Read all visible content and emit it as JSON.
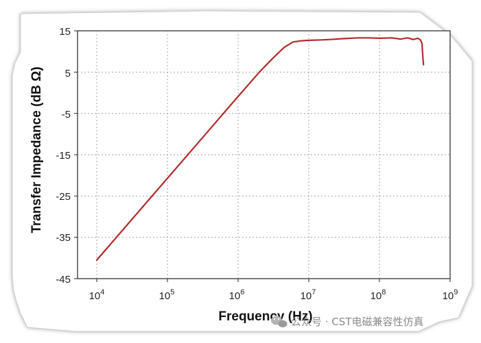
{
  "chart_data": {
    "type": "line",
    "title": "",
    "xlabel": "Frequency (Hz)",
    "ylabel": "Transfer Impedance (dB Ω)",
    "x_scale": "log",
    "xlim": [
      10000,
      1000000000
    ],
    "ylim": [
      -45,
      15
    ],
    "x_tick_labels": [
      {
        "base": "10",
        "exp": "4"
      },
      {
        "base": "10",
        "exp": "5"
      },
      {
        "base": "10",
        "exp": "6"
      },
      {
        "base": "10",
        "exp": "7"
      },
      {
        "base": "10",
        "exp": "8"
      },
      {
        "base": "10",
        "exp": "9"
      }
    ],
    "x_ticks": [
      10000,
      100000,
      1000000,
      10000000,
      100000000,
      1000000000
    ],
    "y_tick_labels": [
      "15",
      "5",
      "-5",
      "-15",
      "-25",
      "-35",
      "-45"
    ],
    "y_ticks": [
      15,
      5,
      -5,
      -15,
      -25,
      -35,
      -45
    ],
    "grid": true,
    "series_color": "#b22a2a",
    "series": [
      {
        "name": "",
        "x": [
          10000,
          31620,
          100000,
          316200,
          1000000,
          2000000,
          3160000,
          4500000,
          6000000,
          8000000,
          10000000,
          15000000,
          20000000,
          30000000,
          50000000,
          70000000,
          100000000,
          150000000,
          200000000,
          250000000,
          300000000,
          350000000,
          380000000,
          400000000,
          410000000,
          420000000
        ],
        "y": [
          -40.5,
          -30.6,
          -20.7,
          -10.8,
          -0.9,
          5.0,
          8.5,
          11.0,
          12.3,
          12.6,
          12.7,
          12.8,
          12.9,
          13.1,
          13.3,
          13.3,
          13.2,
          13.3,
          13.0,
          13.3,
          12.9,
          13.2,
          12.8,
          12.0,
          9.0,
          6.8
        ]
      }
    ]
  },
  "watermark": {
    "icon": "wechat-icon",
    "text": "公众号 · CST电磁兼容性仿真"
  }
}
